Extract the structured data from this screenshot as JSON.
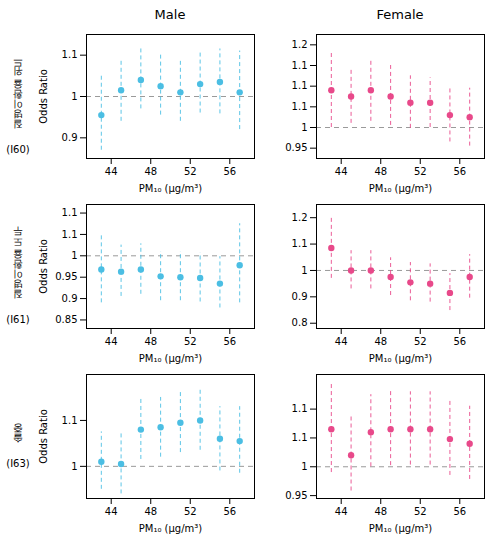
{
  "chart_data": [
    {
      "type": "scatter",
      "title": "Male",
      "row_label": "질병이환율 위드",
      "row_code": "(I60)",
      "xlabel": "PM₁₀ (μg/m³)",
      "ylabel": "Odds Ratio",
      "color": "#4BBEE3",
      "grid": false,
      "x": [
        43,
        45,
        47,
        49,
        51,
        53,
        55,
        57
      ],
      "values": [
        0.955,
        1.015,
        1.04,
        1.025,
        1.01,
        1.03,
        1.035,
        1.01
      ],
      "error_low": [
        0.87,
        0.94,
        0.97,
        0.955,
        0.94,
        0.96,
        0.958,
        0.92
      ],
      "error_high": [
        1.05,
        1.09,
        1.115,
        1.1,
        1.085,
        1.105,
        1.115,
        1.11
      ],
      "reference_y": 1.0,
      "xlim": [
        41.5,
        58.5
      ],
      "xticks": [
        44,
        48,
        52,
        56
      ],
      "ylim": [
        0.85,
        1.15
      ],
      "yticks": [
        0.9,
        1,
        1.1
      ]
    },
    {
      "type": "scatter",
      "title": "Female",
      "xlabel": "PM₁₀ (μg/m³)",
      "color": "#E8498A",
      "grid": false,
      "x": [
        43,
        45,
        47,
        49,
        51,
        53,
        55,
        57
      ],
      "values": [
        1.09,
        1.075,
        1.09,
        1.075,
        1.06,
        1.06,
        1.03,
        1.025
      ],
      "error_low": [
        1.0,
        1.01,
        1.015,
        1.005,
        0.998,
        1.0,
        0.965,
        0.955
      ],
      "error_high": [
        1.185,
        1.145,
        1.165,
        1.15,
        1.125,
        1.12,
        1.095,
        1.095
      ],
      "reference_y": 1.0,
      "xlim": [
        41.5,
        58.5
      ],
      "xticks": [
        44,
        48,
        52,
        56
      ],
      "ylim": [
        0.925,
        1.225
      ],
      "yticks": [
        0.95,
        1,
        {
          "value": 1.05,
          "label": "1.1"
        },
        1.1,
        {
          "value": 1.15,
          "label": "1.1"
        },
        1.2
      ]
    },
    {
      "type": "scatter",
      "row_label": "질병이환율 도두",
      "row_code": "(I61)",
      "xlabel": "PM₁₀ (μg/m³)",
      "ylabel": "Odds Ratio",
      "color": "#4BBEE3",
      "grid": false,
      "x": [
        43,
        45,
        47,
        49,
        51,
        53,
        55,
        57
      ],
      "values": [
        0.968,
        0.963,
        0.968,
        0.952,
        0.95,
        0.948,
        0.935,
        0.978
      ],
      "error_low": [
        0.89,
        0.905,
        0.91,
        0.895,
        0.895,
        0.892,
        0.878,
        0.89
      ],
      "error_high": [
        1.05,
        1.025,
        1.028,
        1.01,
        1.01,
        1.007,
        0.998,
        1.075
      ],
      "reference_y": 1.0,
      "xlim": [
        41.5,
        58.5
      ],
      "xticks": [
        44,
        48,
        52,
        56
      ],
      "ylim": [
        0.83,
        1.12
      ],
      "yticks": [
        0.85,
        0.9,
        0.95,
        1,
        {
          "value": 1.05,
          "label": "1.1"
        },
        1.1
      ]
    },
    {
      "type": "scatter",
      "xlabel": "PM₁₀ (μg/m³)",
      "color": "#E8498A",
      "grid": false,
      "x": [
        43,
        45,
        47,
        49,
        51,
        53,
        55,
        57
      ],
      "values": [
        1.085,
        1.0,
        1.0,
        0.975,
        0.955,
        0.95,
        0.915,
        0.975
      ],
      "error_low": [
        0.97,
        0.93,
        0.93,
        0.905,
        0.885,
        0.88,
        0.848,
        0.895
      ],
      "error_high": [
        1.205,
        1.075,
        1.075,
        1.048,
        1.03,
        1.025,
        0.988,
        1.06
      ],
      "reference_y": 1.0,
      "xlim": [
        41.5,
        58.5
      ],
      "xticks": [
        44,
        48,
        52,
        56
      ],
      "ylim": [
        0.78,
        1.25
      ],
      "yticks": [
        0.8,
        0.9,
        1,
        1.1,
        1.2
      ]
    },
    {
      "type": "scatter",
      "row_label": "솔중",
      "row_code": "(I63)",
      "xlabel": "PM₁₀ (μg/m³)",
      "ylabel": "Odds Ratio",
      "color": "#4BBEE3",
      "grid": false,
      "x": [
        43,
        45,
        47,
        49,
        51,
        53,
        55,
        57
      ],
      "values": [
        1.01,
        1.005,
        1.08,
        1.085,
        1.095,
        1.1,
        1.06,
        1.055
      ],
      "error_low": [
        0.95,
        0.94,
        1.015,
        1.02,
        1.03,
        1.035,
        0.99,
        0.985
      ],
      "error_high": [
        1.075,
        1.075,
        1.15,
        1.15,
        1.165,
        1.17,
        1.13,
        1.13
      ],
      "reference_y": 1.0,
      "xlim": [
        41.5,
        58.5
      ],
      "xticks": [
        44,
        48,
        52,
        56
      ],
      "ylim": [
        0.93,
        1.2
      ],
      "yticks": [
        1,
        1.1
      ]
    },
    {
      "type": "scatter",
      "xlabel": "PM₁₀ (μg/m³)",
      "color": "#E8498A",
      "grid": false,
      "x": [
        43,
        45,
        47,
        49,
        51,
        53,
        55,
        57
      ],
      "values": [
        1.065,
        1.02,
        1.06,
        1.065,
        1.065,
        1.065,
        1.048,
        1.04
      ],
      "error_low": [
        0.99,
        0.958,
        1.0,
        1.002,
        1.003,
        1.003,
        0.985,
        0.978
      ],
      "error_high": [
        1.145,
        1.088,
        1.125,
        1.132,
        1.13,
        1.13,
        1.115,
        1.105
      ],
      "reference_y": 1.0,
      "xlim": [
        41.5,
        58.5
      ],
      "xticks": [
        44,
        48,
        52,
        56
      ],
      "ylim": [
        0.945,
        1.16
      ],
      "yticks": [
        0.95,
        1,
        {
          "value": 1.05,
          "label": "1.1"
        },
        1.1
      ]
    }
  ]
}
